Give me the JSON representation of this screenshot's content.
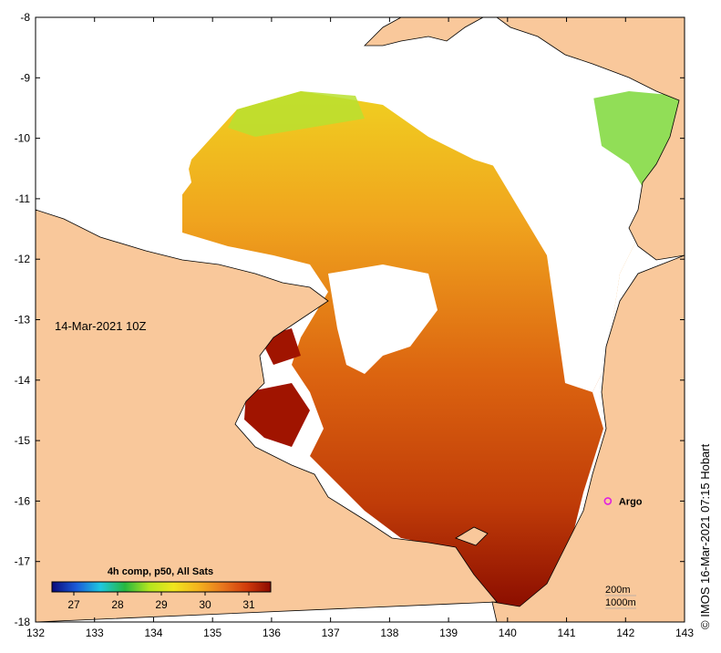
{
  "map": {
    "timestamp": "14-Mar-2021 10Z",
    "x_ticks": [
      "132",
      "133",
      "134",
      "135",
      "136",
      "137",
      "138",
      "139",
      "140",
      "141",
      "142",
      "143"
    ],
    "y_ticks": [
      "-8",
      "-9",
      "-10",
      "-11",
      "-12",
      "-13",
      "-14",
      "-15",
      "-16",
      "-17",
      "-18"
    ],
    "x_range": [
      132,
      143
    ],
    "y_range": [
      -18,
      -8
    ],
    "land_color": "#f9c89b",
    "colorbar": {
      "title": "4h comp, p50, All Sats",
      "labels": [
        "27",
        "28",
        "29",
        "30",
        "31"
      ],
      "range": [
        26.5,
        31.5
      ],
      "colors": [
        "#0a0a7a",
        "#1a5ad8",
        "#1ec8e0",
        "#26b840",
        "#b4e61e",
        "#f0e61e",
        "#f5b41e",
        "#e8781e",
        "#d23c0c",
        "#8c0a00"
      ]
    },
    "marker": {
      "label": "Argo",
      "color": "#e020e0",
      "lon": 141.7,
      "lat": -16.0
    },
    "depth_legend": {
      "line1": "200m",
      "line2": "1000m"
    },
    "credit": "© IMOS 16-Mar-2021 07:15 Hobart"
  }
}
